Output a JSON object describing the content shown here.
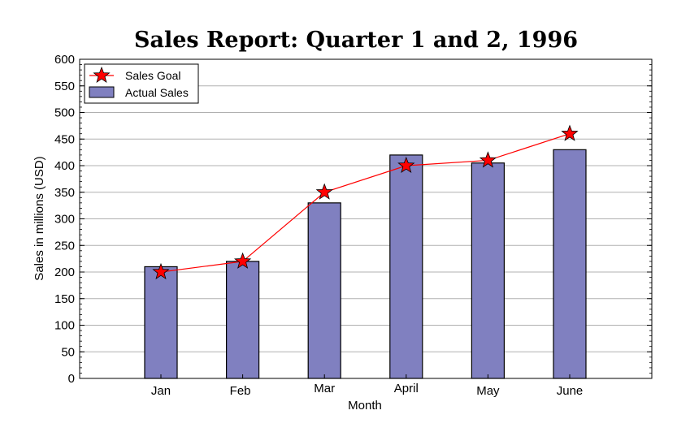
{
  "chart_data": {
    "type": "bar",
    "title": "Sales Report: Quarter 1 and 2, 1996",
    "xlabel": "Month",
    "ylabel": "Sales in millions (USD)",
    "categories": [
      "Jan",
      "Feb",
      "Mar",
      "April",
      "May",
      "June"
    ],
    "ylim": [
      0,
      600
    ],
    "yticks": [
      0,
      50,
      100,
      150,
      200,
      250,
      300,
      350,
      400,
      450,
      500,
      550,
      600
    ],
    "grid": true,
    "legend_position": "top-left",
    "series": [
      {
        "name": "Actual Sales",
        "type": "bar",
        "color": "#8080c0",
        "values": [
          210,
          220,
          330,
          420,
          405,
          430
        ]
      },
      {
        "name": "Sales Goal",
        "type": "line",
        "marker": "star",
        "color": "#ff0000",
        "values": [
          200,
          220,
          350,
          400,
          410,
          460
        ]
      }
    ]
  }
}
